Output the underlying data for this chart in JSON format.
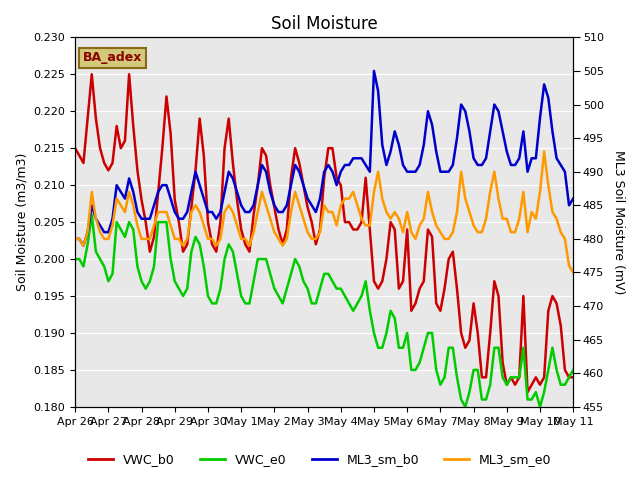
{
  "title": "Soil Moisture",
  "ylabel_left": "Soil Moisture (m3/m3)",
  "ylabel_right": "ML3 Soil Moisture (mV)",
  "ylim_left": [
    0.18,
    0.23
  ],
  "ylim_right": [
    455,
    510
  ],
  "yticks_left": [
    0.18,
    0.185,
    0.19,
    0.195,
    0.2,
    0.205,
    0.21,
    0.215,
    0.22,
    0.225,
    0.23
  ],
  "yticks_right": [
    455,
    460,
    465,
    470,
    475,
    480,
    485,
    490,
    495,
    500,
    505,
    510
  ],
  "bg_color": "#e8e8e8",
  "annotation_text": "BA_adex",
  "annotation_color": "#8b0000",
  "annotation_bg": "#d4c87a",
  "series": {
    "VWC_b0": {
      "color": "#cc0000",
      "linewidth": 1.8,
      "axis": "left",
      "x": [
        0,
        0.125,
        0.25,
        0.375,
        0.5,
        0.625,
        0.75,
        0.875,
        1.0,
        1.125,
        1.25,
        1.375,
        1.5,
        1.625,
        1.75,
        1.875,
        2.0,
        2.125,
        2.25,
        2.375,
        2.5,
        2.625,
        2.75,
        2.875,
        3.0,
        3.125,
        3.25,
        3.375,
        3.5,
        3.625,
        3.75,
        3.875,
        4.0,
        4.125,
        4.25,
        4.375,
        4.5,
        4.625,
        4.75,
        4.875,
        5.0,
        5.125,
        5.25,
        5.375,
        5.5,
        5.625,
        5.75,
        5.875,
        6.0,
        6.125,
        6.25,
        6.375,
        6.5,
        6.625,
        6.75,
        6.875,
        7.0,
        7.125,
        7.25,
        7.375,
        7.5,
        7.625,
        7.75,
        7.875,
        8.0,
        8.125,
        8.25,
        8.375,
        8.5,
        8.625,
        8.75,
        8.875,
        9.0,
        9.125,
        9.25,
        9.375,
        9.5,
        9.625,
        9.75,
        9.875,
        10.0,
        10.125,
        10.25,
        10.375,
        10.5,
        10.625,
        10.75,
        10.875,
        11.0,
        11.125,
        11.25,
        11.375,
        11.5,
        11.625,
        11.75,
        11.875,
        12.0,
        12.125,
        12.25,
        12.375,
        12.5,
        12.625,
        12.75,
        12.875,
        13.0,
        13.125,
        13.25,
        13.375,
        13.5,
        13.625,
        13.75,
        13.875,
        14.0,
        14.125,
        14.25,
        14.375,
        14.5,
        14.625,
        14.75,
        14.875,
        15.0
      ],
      "y": [
        0.215,
        0.214,
        0.213,
        0.219,
        0.225,
        0.219,
        0.215,
        0.213,
        0.212,
        0.213,
        0.218,
        0.215,
        0.216,
        0.225,
        0.218,
        0.212,
        0.208,
        0.205,
        0.201,
        0.203,
        0.209,
        0.215,
        0.222,
        0.217,
        0.208,
        0.205,
        0.201,
        0.202,
        0.207,
        0.212,
        0.219,
        0.214,
        0.205,
        0.202,
        0.201,
        0.205,
        0.215,
        0.219,
        0.213,
        0.208,
        0.204,
        0.202,
        0.201,
        0.206,
        0.21,
        0.215,
        0.214,
        0.21,
        0.207,
        0.204,
        0.202,
        0.204,
        0.211,
        0.215,
        0.213,
        0.21,
        0.207,
        0.205,
        0.202,
        0.204,
        0.211,
        0.215,
        0.215,
        0.211,
        0.21,
        0.205,
        0.205,
        0.204,
        0.204,
        0.205,
        0.211,
        0.204,
        0.197,
        0.196,
        0.197,
        0.2,
        0.205,
        0.204,
        0.196,
        0.197,
        0.204,
        0.193,
        0.194,
        0.196,
        0.197,
        0.204,
        0.203,
        0.194,
        0.193,
        0.196,
        0.2,
        0.201,
        0.196,
        0.19,
        0.188,
        0.189,
        0.194,
        0.19,
        0.184,
        0.184,
        0.19,
        0.197,
        0.195,
        0.186,
        0.183,
        0.184,
        0.183,
        0.184,
        0.195,
        0.182,
        0.183,
        0.184,
        0.183,
        0.184,
        0.193,
        0.195,
        0.194,
        0.191,
        0.185,
        0.184,
        0.184
      ]
    },
    "VWC_e0": {
      "color": "#00cc00",
      "linewidth": 1.8,
      "axis": "left",
      "x": [
        0,
        0.125,
        0.25,
        0.375,
        0.5,
        0.625,
        0.75,
        0.875,
        1.0,
        1.125,
        1.25,
        1.375,
        1.5,
        1.625,
        1.75,
        1.875,
        2.0,
        2.125,
        2.25,
        2.375,
        2.5,
        2.625,
        2.75,
        2.875,
        3.0,
        3.125,
        3.25,
        3.375,
        3.5,
        3.625,
        3.75,
        3.875,
        4.0,
        4.125,
        4.25,
        4.375,
        4.5,
        4.625,
        4.75,
        4.875,
        5.0,
        5.125,
        5.25,
        5.375,
        5.5,
        5.625,
        5.75,
        5.875,
        6.0,
        6.125,
        6.25,
        6.375,
        6.5,
        6.625,
        6.75,
        6.875,
        7.0,
        7.125,
        7.25,
        7.375,
        7.5,
        7.625,
        7.75,
        7.875,
        8.0,
        8.125,
        8.25,
        8.375,
        8.5,
        8.625,
        8.75,
        8.875,
        9.0,
        9.125,
        9.25,
        9.375,
        9.5,
        9.625,
        9.75,
        9.875,
        10.0,
        10.125,
        10.25,
        10.375,
        10.5,
        10.625,
        10.75,
        10.875,
        11.0,
        11.125,
        11.25,
        11.375,
        11.5,
        11.625,
        11.75,
        11.875,
        12.0,
        12.125,
        12.25,
        12.375,
        12.5,
        12.625,
        12.75,
        12.875,
        13.0,
        13.125,
        13.25,
        13.375,
        13.5,
        13.625,
        13.75,
        13.875,
        14.0,
        14.125,
        14.25,
        14.375,
        14.5,
        14.625,
        14.75,
        14.875,
        15.0
      ],
      "y": [
        0.2,
        0.2,
        0.199,
        0.202,
        0.206,
        0.201,
        0.2,
        0.199,
        0.197,
        0.198,
        0.205,
        0.204,
        0.203,
        0.205,
        0.204,
        0.199,
        0.197,
        0.196,
        0.197,
        0.199,
        0.205,
        0.205,
        0.205,
        0.2,
        0.197,
        0.196,
        0.195,
        0.196,
        0.201,
        0.203,
        0.202,
        0.199,
        0.195,
        0.194,
        0.194,
        0.196,
        0.2,
        0.202,
        0.201,
        0.198,
        0.195,
        0.194,
        0.194,
        0.197,
        0.2,
        0.2,
        0.2,
        0.198,
        0.196,
        0.195,
        0.194,
        0.196,
        0.198,
        0.2,
        0.199,
        0.197,
        0.196,
        0.194,
        0.194,
        0.196,
        0.198,
        0.198,
        0.197,
        0.196,
        0.196,
        0.195,
        0.194,
        0.193,
        0.194,
        0.195,
        0.197,
        0.193,
        0.19,
        0.188,
        0.188,
        0.19,
        0.193,
        0.192,
        0.188,
        0.188,
        0.19,
        0.185,
        0.185,
        0.186,
        0.188,
        0.19,
        0.19,
        0.185,
        0.183,
        0.184,
        0.188,
        0.188,
        0.184,
        0.181,
        0.18,
        0.182,
        0.185,
        0.185,
        0.181,
        0.181,
        0.183,
        0.188,
        0.188,
        0.184,
        0.183,
        0.184,
        0.184,
        0.184,
        0.188,
        0.181,
        0.181,
        0.182,
        0.18,
        0.182,
        0.185,
        0.188,
        0.185,
        0.183,
        0.183,
        0.184,
        0.185
      ]
    },
    "ML3_sm_b0": {
      "color": "#0000cc",
      "linewidth": 1.8,
      "axis": "right",
      "x": [
        0,
        0.125,
        0.25,
        0.375,
        0.5,
        0.625,
        0.75,
        0.875,
        1.0,
        1.125,
        1.25,
        1.375,
        1.5,
        1.625,
        1.75,
        1.875,
        2.0,
        2.125,
        2.25,
        2.375,
        2.5,
        2.625,
        2.75,
        2.875,
        3.0,
        3.125,
        3.25,
        3.375,
        3.5,
        3.625,
        3.75,
        3.875,
        4.0,
        4.125,
        4.25,
        4.375,
        4.5,
        4.625,
        4.75,
        4.875,
        5.0,
        5.125,
        5.25,
        5.375,
        5.5,
        5.625,
        5.75,
        5.875,
        6.0,
        6.125,
        6.25,
        6.375,
        6.5,
        6.625,
        6.75,
        6.875,
        7.0,
        7.125,
        7.25,
        7.375,
        7.5,
        7.625,
        7.75,
        7.875,
        8.0,
        8.125,
        8.25,
        8.375,
        8.5,
        8.625,
        8.75,
        8.875,
        9.0,
        9.125,
        9.25,
        9.375,
        9.5,
        9.625,
        9.75,
        9.875,
        10.0,
        10.125,
        10.25,
        10.375,
        10.5,
        10.625,
        10.75,
        10.875,
        11.0,
        11.125,
        11.25,
        11.375,
        11.5,
        11.625,
        11.75,
        11.875,
        12.0,
        12.125,
        12.25,
        12.375,
        12.5,
        12.625,
        12.75,
        12.875,
        13.0,
        13.125,
        13.25,
        13.375,
        13.5,
        13.625,
        13.75,
        13.875,
        14.0,
        14.125,
        14.25,
        14.375,
        14.5,
        14.625,
        14.75,
        14.875,
        15.0
      ],
      "y": [
        480,
        480,
        479,
        481,
        485,
        483,
        482,
        481,
        481,
        483,
        488,
        487,
        486,
        489,
        487,
        484,
        483,
        483,
        483,
        485,
        487,
        488,
        488,
        486,
        484,
        483,
        483,
        484,
        487,
        490,
        488,
        486,
        484,
        484,
        483,
        484,
        487,
        490,
        489,
        487,
        485,
        484,
        484,
        485,
        488,
        491,
        490,
        487,
        485,
        484,
        484,
        485,
        488,
        491,
        490,
        488,
        486,
        485,
        484,
        486,
        490,
        491,
        490,
        488,
        490,
        491,
        491,
        492,
        492,
        492,
        491,
        490,
        505,
        502,
        494,
        491,
        493,
        496,
        494,
        491,
        490,
        490,
        490,
        491,
        494,
        499,
        497,
        493,
        490,
        490,
        490,
        491,
        495,
        500,
        499,
        496,
        492,
        491,
        491,
        492,
        496,
        500,
        499,
        496,
        493,
        491,
        491,
        492,
        496,
        490,
        492,
        492,
        498,
        503,
        501,
        496,
        492,
        491,
        490,
        485,
        486
      ]
    },
    "ML3_sm_e0": {
      "color": "#ff9900",
      "linewidth": 1.8,
      "axis": "right",
      "x": [
        0,
        0.125,
        0.25,
        0.375,
        0.5,
        0.625,
        0.75,
        0.875,
        1.0,
        1.125,
        1.25,
        1.375,
        1.5,
        1.625,
        1.75,
        1.875,
        2.0,
        2.125,
        2.25,
        2.375,
        2.5,
        2.625,
        2.75,
        2.875,
        3.0,
        3.125,
        3.25,
        3.375,
        3.5,
        3.625,
        3.75,
        3.875,
        4.0,
        4.125,
        4.25,
        4.375,
        4.5,
        4.625,
        4.75,
        4.875,
        5.0,
        5.125,
        5.25,
        5.375,
        5.5,
        5.625,
        5.75,
        5.875,
        6.0,
        6.125,
        6.25,
        6.375,
        6.5,
        6.625,
        6.75,
        6.875,
        7.0,
        7.125,
        7.25,
        7.375,
        7.5,
        7.625,
        7.75,
        7.875,
        8.0,
        8.125,
        8.25,
        8.375,
        8.5,
        8.625,
        8.75,
        8.875,
        9.0,
        9.125,
        9.25,
        9.375,
        9.5,
        9.625,
        9.75,
        9.875,
        10.0,
        10.125,
        10.25,
        10.375,
        10.5,
        10.625,
        10.75,
        10.875,
        11.0,
        11.125,
        11.25,
        11.375,
        11.5,
        11.625,
        11.75,
        11.875,
        12.0,
        12.125,
        12.25,
        12.375,
        12.5,
        12.625,
        12.75,
        12.875,
        13.0,
        13.125,
        13.25,
        13.375,
        13.5,
        13.625,
        13.75,
        13.875,
        14.0,
        14.125,
        14.25,
        14.375,
        14.5,
        14.625,
        14.75,
        14.875,
        15.0
      ],
      "y": [
        480,
        480,
        479,
        481,
        487,
        483,
        481,
        480,
        480,
        482,
        486,
        485,
        484,
        487,
        485,
        482,
        480,
        480,
        480,
        482,
        484,
        484,
        484,
        482,
        480,
        480,
        479,
        480,
        484,
        485,
        484,
        482,
        480,
        480,
        479,
        480,
        484,
        485,
        484,
        482,
        480,
        480,
        479,
        481,
        484,
        487,
        485,
        483,
        481,
        480,
        479,
        480,
        484,
        487,
        485,
        483,
        481,
        480,
        480,
        481,
        485,
        484,
        484,
        482,
        485,
        486,
        486,
        487,
        485,
        483,
        482,
        482,
        487,
        490,
        486,
        484,
        483,
        484,
        483,
        481,
        484,
        481,
        480,
        482,
        483,
        487,
        484,
        482,
        481,
        480,
        480,
        481,
        484,
        490,
        486,
        484,
        482,
        481,
        481,
        483,
        487,
        490,
        486,
        483,
        483,
        481,
        481,
        483,
        487,
        481,
        484,
        483,
        487,
        493,
        488,
        484,
        483,
        481,
        480,
        476,
        475
      ]
    }
  },
  "xticks": [
    0,
    1,
    2,
    3,
    4,
    5,
    6,
    7,
    8,
    9,
    10,
    11,
    12,
    13,
    14,
    15
  ],
  "xticklabels": [
    "Apr 26",
    "Apr 27",
    "Apr 28",
    "Apr 29",
    "Apr 30",
    "May 1",
    "May 2",
    "May 3",
    "May 4",
    "May 5",
    "May 6",
    "May 7",
    "May 8",
    "May 9",
    "May 10",
    "May 11"
  ],
  "xlim": [
    0,
    15
  ]
}
